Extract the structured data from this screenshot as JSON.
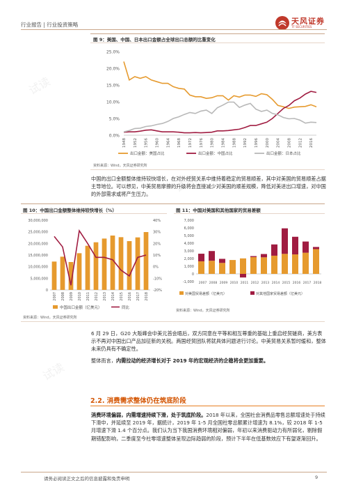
{
  "header": {
    "text": "行业报告 | 行业投资策略"
  },
  "logo": {
    "name": "天风证券",
    "en": "TF SECURITIES"
  },
  "fig9": {
    "title": "图 9：美国、中国、日本出口金额占全球出口总额的比重变化",
    "source": "资料来源：Wind，天风证券研究所",
    "chart_data": {
      "type": "line",
      "x": [
        1948,
        1950,
        1952,
        1954,
        1956,
        1958,
        1960,
        1962,
        1964,
        1966,
        1968,
        1970,
        1972,
        1974,
        1976,
        1978,
        1980,
        1982,
        1984,
        1986,
        1988,
        1990,
        1992,
        1994,
        1996,
        1998,
        2000,
        2002,
        2004,
        2006,
        2008,
        2010,
        2012,
        2014,
        2016,
        2018
      ],
      "xticks": [
        "1948",
        "1952",
        "1956",
        "1960",
        "1964",
        "1968",
        "1972",
        "1976",
        "1980",
        "1984",
        "1988",
        "1992",
        "1996",
        "2000",
        "2004",
        "2008",
        "2012",
        "2016"
      ],
      "ylim": [
        0,
        25
      ],
      "yticks": [
        "0.0%",
        "5.0%",
        "10.0%",
        "15.0%",
        "20.0%",
        "25.0%"
      ],
      "series": [
        {
          "name": "出口金额：美国占比",
          "color": "#E69A2E",
          "values": [
            22.0,
            16.5,
            17.5,
            17.0,
            17.5,
            16.5,
            16.0,
            15.5,
            15.5,
            14.5,
            14.0,
            13.8,
            12.0,
            11.5,
            11.5,
            11.0,
            11.2,
            11.8,
            11.8,
            10.5,
            11.8,
            11.4,
            12.0,
            12.0,
            11.6,
            12.4,
            12.1,
            10.7,
            8.9,
            8.5,
            8.0,
            8.4,
            8.5,
            8.6,
            9.1,
            8.5
          ]
        },
        {
          "name": "出口金额：中国占比",
          "color": "#A01C41",
          "values": [
            0.9,
            1.0,
            1.0,
            1.2,
            1.5,
            1.6,
            1.3,
            1.0,
            1.0,
            1.0,
            0.9,
            0.7,
            0.7,
            0.8,
            0.7,
            0.8,
            0.9,
            1.3,
            1.3,
            1.4,
            1.6,
            1.8,
            2.3,
            2.9,
            2.9,
            3.4,
            3.9,
            5.0,
            6.5,
            8.0,
            8.9,
            10.3,
            11.1,
            12.3,
            13.1,
            12.8
          ]
        },
        {
          "name": "出口金额：日本占比",
          "color": "#B8B8B8",
          "values": [
            1.0,
            1.4,
            2.0,
            2.1,
            2.6,
            2.8,
            3.2,
            3.5,
            4.1,
            5.0,
            5.5,
            6.2,
            6.8,
            6.5,
            7.2,
            7.5,
            6.5,
            8.2,
            9.0,
            9.9,
            9.9,
            8.3,
            9.0,
            9.5,
            7.8,
            7.1,
            7.5,
            6.5,
            6.1,
            5.3,
            4.9,
            5.0,
            4.5,
            3.6,
            3.9,
            3.8
          ]
        }
      ]
    }
  },
  "para1": "中国的出口金额整体维持较快增长，在对外经贸关系中维持着稳定的贸易顺差，其中对美国的贸易顺差占据主导地位。可以想见，中美贸易摩擦的升级将会直接减少对美国的顺差规模，降低对美进出口增速，对中国的外部需求或将产生压力。",
  "fig10": {
    "title": "图 10：中国出口金额整体维持较快增长（%）",
    "source": "资料来源：Wind，天风证券研究所",
    "chart_data": {
      "type": "bar",
      "categories": [
        "2007",
        "2008",
        "2009",
        "2010",
        "2011",
        "2012",
        "2013",
        "2014",
        "2015",
        "2016",
        "2017",
        "2018"
      ],
      "series": [
        {
          "name": "中国出口金额（亿美元）",
          "color": "#E69A2E",
          "axis": "left",
          "values": [
            12200000,
            14300000,
            12000000,
            15800000,
            19000000,
            20500000,
            22100000,
            23400000,
            22700000,
            21000000,
            22600000,
            24900000
          ]
        },
        {
          "name": "同比",
          "color": "#A01C41",
          "axis": "right",
          "type": "line",
          "values": [
            26,
            17,
            -16,
            31,
            20,
            8,
            8,
            6,
            -3,
            -8,
            8,
            10
          ]
        }
      ],
      "ylim_left": [
        0,
        30000000
      ],
      "yticks_left": [
        "0",
        "5,000,000",
        "10,000,000",
        "15,000,000",
        "20,000,000",
        "25,000,000",
        "30,000,000"
      ],
      "ylim_right": [
        -20,
        40
      ],
      "yticks_right": [
        "-20%",
        "-10%",
        "0%",
        "10%",
        "20%",
        "30%",
        "40%"
      ]
    }
  },
  "fig11": {
    "title": "图 11：中国对美国和其他国家的贸易差额",
    "source": "资料来源：Wind，天风证券研究所",
    "chart_data": {
      "type": "bar",
      "categories": [
        "2007",
        "2008",
        "2009",
        "2010",
        "2011",
        "2012",
        "2013",
        "2014",
        "2015",
        "2016",
        "2017",
        "2018"
      ],
      "series": [
        {
          "name": "对美国贸易差额（亿美元）",
          "color": "#E69A2E",
          "values": [
            1640,
            1710,
            1430,
            1810,
            2020,
            2190,
            2160,
            2370,
            2610,
            2540,
            2760,
            3230
          ]
        },
        {
          "name": "对其他国家贸易差额（亿美元）",
          "color": "#A01C41",
          "values": [
            990,
            1270,
            530,
            0,
            -470,
            130,
            430,
            1470,
            3330,
            2300,
            1460,
            280
          ]
        }
      ],
      "ylim": [
        -1000,
        7000
      ],
      "yticks": [
        "-1,000",
        "0",
        "1,000",
        "2,000",
        "3,000",
        "4,000",
        "5,000",
        "6,000",
        "7,000"
      ]
    }
  },
  "para2": "6 月 29 日，G20 大阪峰会中美元首会晤后，双方同意在平等和相互尊重的基础上重启经贸磋商，美方表示不再对中国出口产品加征新的关税。两国经贸团队将就具体问题进行讨论。中美贸易关系暂时缓和，整体未来仍具有不确定性。",
  "para3": {
    "pre": "整体而言，",
    "bold": "内需拉动的经济增长对于 2019 年的宏观经济的企稳将会更加重要。"
  },
  "section": {
    "title": "2.2. 消费需求整体仍在筑底阶段"
  },
  "para4": {
    "bold": "消费环境偏弱，内需增速持续下滑，处于筑底阶段。",
    "rest": "2018 年以来，全国社会消费品零售总额增速处于持续下滑中，并延续至 2019 年，据统计，2019 年 1-5 月全国社零总额累计增速为 8.1%，较 2018 年 1-5 月增速下滑 1.4 个百分点。我们认为当下我国消费环境相对偏弱，年初以来消费驱动力有所弱化，剔除假期错配影响，二季度至今社零增速整体呈现边际趋弱的阶段，预计下半年在低基数效应下有望逐渐回升。"
  },
  "footer": {
    "text": "请务必阅读正文之后的信息披露和免责申明",
    "page": "9"
  }
}
